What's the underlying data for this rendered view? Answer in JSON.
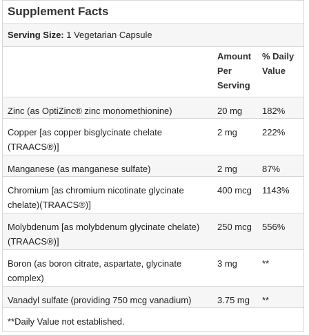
{
  "title": "Supplement Facts",
  "serving": {
    "label": "Serving Size:",
    "value": "1 Vegetarian Capsule"
  },
  "table": {
    "headers": {
      "amount": "Amount Per Serving",
      "daily_value": "% Daily Value"
    },
    "rows": [
      {
        "name": "Zinc (as OptiZinc® zinc monomethionine)",
        "amount": "20 mg",
        "dv": "182%"
      },
      {
        "name": "Copper [as copper bisglycinate chelate (TRAACS®)]",
        "amount": "2 mg",
        "dv": "222%"
      },
      {
        "name": "Manganese (as manganese sulfate)",
        "amount": "2 mg",
        "dv": "87%"
      },
      {
        "name": "Chromium [as chromium nicotinate glycinate chelate)(TRAACS®)]",
        "amount": "400 mcg",
        "dv": "1143%"
      },
      {
        "name": "Molybdenum [as molybdenum glycinate chelate) (TRAACS®)]",
        "amount": "250 mcg",
        "dv": "556%"
      },
      {
        "name": "Boron (as boron citrate, aspartate, glycinate complex)",
        "amount": "3 mg",
        "dv": "**"
      },
      {
        "name": "Vanadyl sulfate (providing 750 mcg vanadium)",
        "amount": "3.75 mg",
        "dv": "**"
      }
    ],
    "footnote": "**Daily Value not established."
  }
}
